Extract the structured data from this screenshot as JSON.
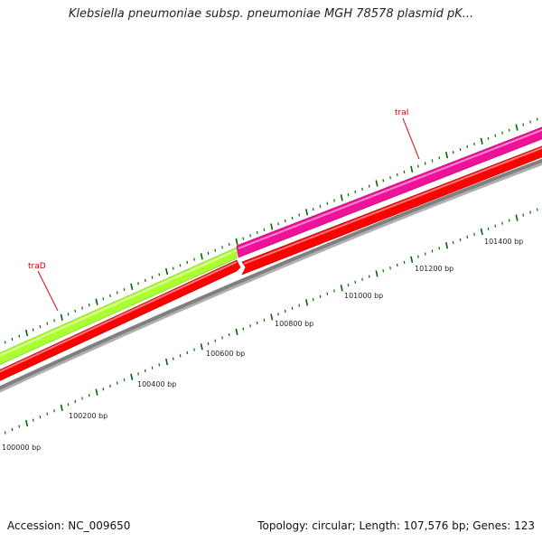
{
  "title": "Klebsiella pneumoniae subsp. pneumoniae MGH 78578 plasmid pK...",
  "footer": {
    "accession_label": "Accession:",
    "accession": "NC_009650",
    "topology_label": "Topology:",
    "topology": "circular",
    "length_label": "Length:",
    "length": "107,576 bp",
    "genes_label": "Genes:",
    "genes": "123"
  },
  "genes": [
    {
      "name": "traD",
      "color": "#aaff33"
    },
    {
      "name": "traI",
      "color": "#ee1199"
    }
  ],
  "cds_color": "#ff0000",
  "backbone_color": "#808080",
  "tick_color": "#006600",
  "tick_labels": [
    "100000 bp",
    "100200 bp",
    "100400 bp",
    "100600 bp",
    "100800 bp",
    "101000 bp",
    "101200 bp",
    "101400 bp"
  ]
}
